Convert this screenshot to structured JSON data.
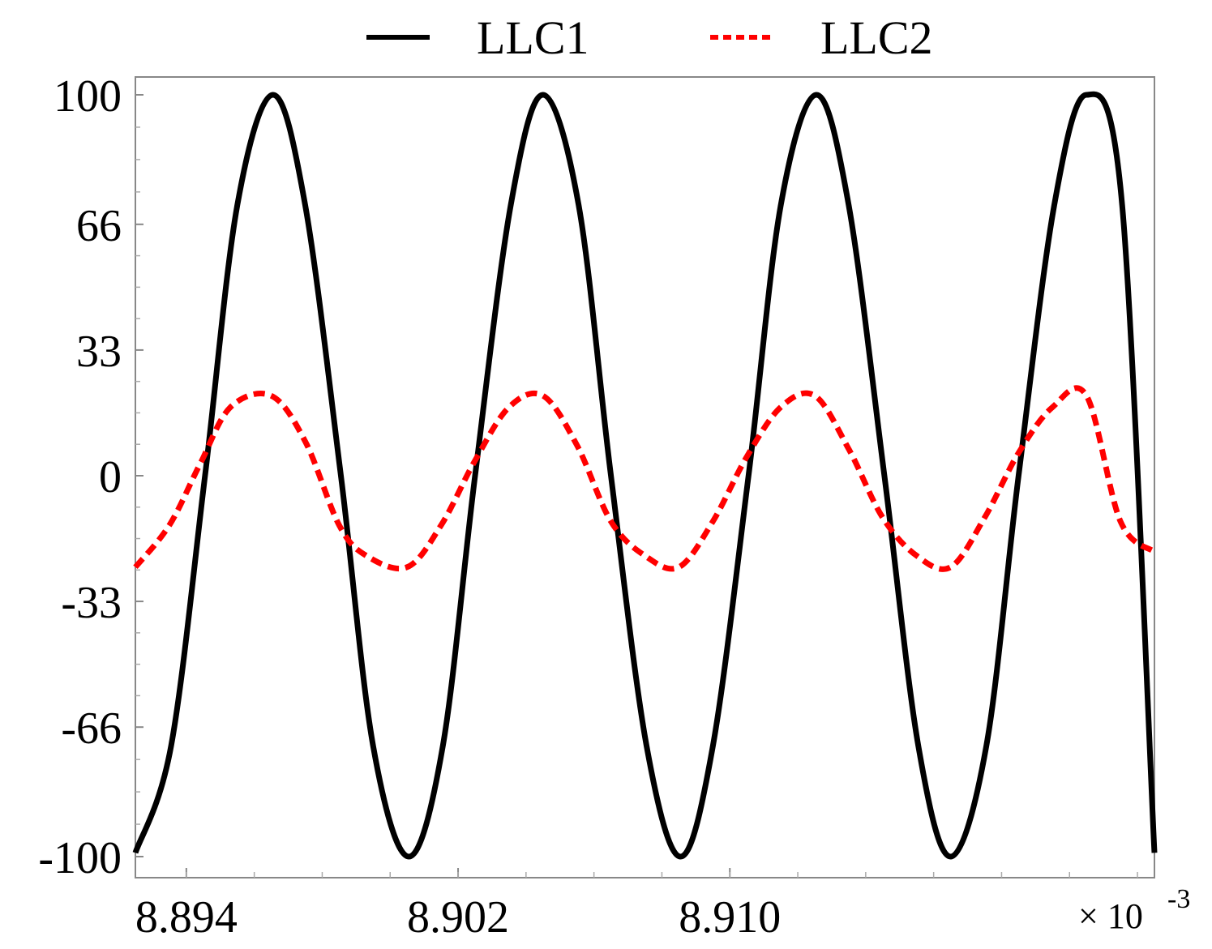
{
  "chart_data": {
    "type": "line",
    "title": "",
    "xlabel": "",
    "ylabel": "",
    "x_multiplier_label": "× 10",
    "x_multiplier_exponent": "-3",
    "xlim": [
      8.8925,
      8.9225
    ],
    "ylim": [
      -100,
      100
    ],
    "x_ticks": [
      {
        "value": 8.894,
        "label": "8.894"
      },
      {
        "value": 8.902,
        "label": "8.902"
      },
      {
        "value": 8.91,
        "label": "8.910"
      }
    ],
    "y_ticks": [
      {
        "value": 100,
        "label": "100"
      },
      {
        "value": 66,
        "label": "66"
      },
      {
        "value": 33,
        "label": "33"
      },
      {
        "value": 0,
        "label": "0"
      },
      {
        "value": -33,
        "label": "-33"
      },
      {
        "value": -66,
        "label": "-66"
      },
      {
        "value": -100,
        "label": "-100"
      }
    ],
    "grid": false,
    "legend_position": "top-center",
    "series": [
      {
        "name": "LLC1",
        "color": "#000000",
        "style": "solid",
        "amplitude": 100,
        "offset": 0,
        "x": [
          8.8925,
          8.89355,
          8.89455,
          8.8955,
          8.89655,
          8.8975,
          8.89855,
          8.8995,
          8.90055,
          8.90155,
          8.9025,
          8.90355,
          8.9045,
          8.90555,
          8.9065,
          8.90755,
          8.90855,
          8.9095,
          8.91055,
          8.9115,
          8.91255,
          8.9135,
          8.91455,
          8.91555,
          8.9165,
          8.91755,
          8.9185,
          8.91955,
          8.9205,
          8.92155,
          8.9225
        ],
        "values": [
          -99,
          -71,
          0,
          71,
          100,
          71,
          0,
          -71,
          -100,
          -71,
          0,
          71,
          100,
          71,
          0,
          -71,
          -100,
          -71,
          0,
          71,
          100,
          71,
          0,
          -71,
          -100,
          -71,
          0,
          71,
          100,
          71,
          -99
        ]
      },
      {
        "name": "LLC2",
        "color": "#ff0000",
        "style": "dashed",
        "x": [
          8.8925,
          8.8935,
          8.8944,
          8.8953,
          8.8965,
          8.8975,
          8.8985,
          8.8993,
          8.9005,
          8.9015,
          8.9025,
          8.9035,
          8.9045,
          8.9055,
          8.9065,
          8.9075,
          8.9085,
          8.9095,
          8.9105,
          8.9115,
          8.9125,
          8.9135,
          8.9145,
          8.9155,
          8.9165,
          8.9175,
          8.9185,
          8.9195,
          8.9205,
          8.9215,
          8.9225
        ],
        "values": [
          -24,
          -13,
          3,
          18,
          21,
          9,
          -13,
          -21,
          -24,
          -13,
          4,
          18,
          21,
          8,
          -12,
          -21,
          -24,
          -12,
          5,
          18,
          21,
          7,
          -11,
          -21,
          -24,
          -11,
          6,
          18,
          21,
          -12,
          -20
        ]
      }
    ]
  }
}
